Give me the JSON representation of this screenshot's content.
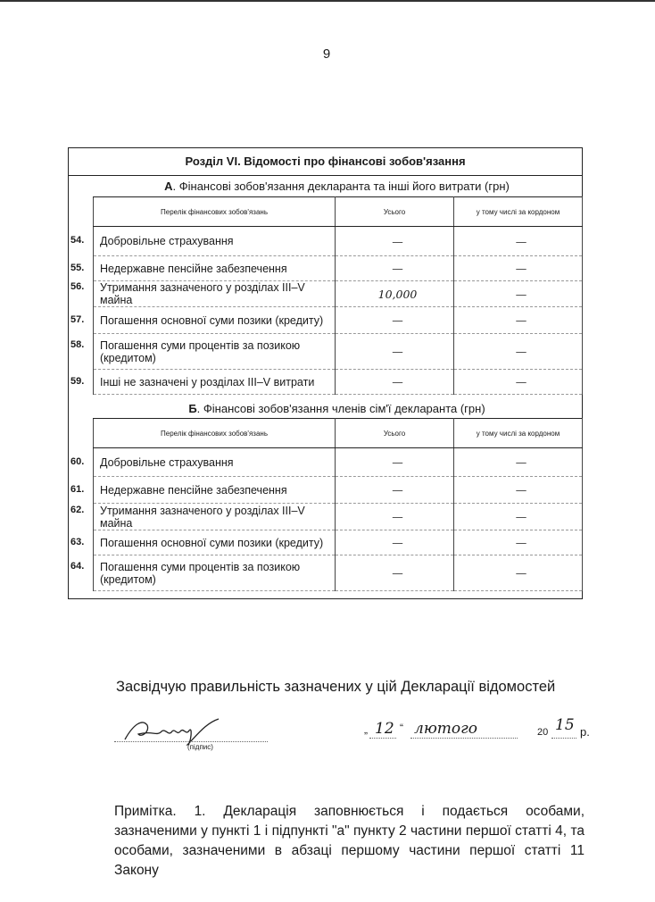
{
  "page_number": "9",
  "section_title": "Розділ VI. Відомості про фінансові зобов'язання",
  "part_a": {
    "letter": "А",
    "heading": ". Фінансові зобов'язання декларанта та інші його витрати (грн)",
    "columns": [
      "Перелік фінансових зобов'язань",
      "Усього",
      "у тому числі за кордоном"
    ],
    "rows": [
      {
        "num": "54.",
        "label": "Добровільне страхування",
        "total": "—",
        "abroad": "—"
      },
      {
        "num": "55.",
        "label": "Недержавне пенсійне забезпечення",
        "total": "—",
        "abroad": "—"
      },
      {
        "num": "56.",
        "label": "Утримання зазначеного у розділах III–V майна",
        "total": "10,000",
        "abroad": "—"
      },
      {
        "num": "57.",
        "label": "Погашення основної суми позики (кредиту)",
        "total": "—",
        "abroad": "—"
      },
      {
        "num": "58.",
        "label": "Погашення суми процентів за позикою (кредитом)",
        "total": "—",
        "abroad": "—"
      },
      {
        "num": "59.",
        "label": "Інші не зазначені у розділах III–V витрати",
        "total": "—",
        "abroad": "—"
      }
    ]
  },
  "part_b": {
    "letter": "Б",
    "heading": ". Фінансові зобов'язання членів сім'ї декларанта (грн)",
    "columns": [
      "Перелік фінансових зобов'язань",
      "Усього",
      "у тому числі за кордоном"
    ],
    "rows": [
      {
        "num": "60.",
        "label": "Добровільне страхування",
        "total": "—",
        "abroad": "—"
      },
      {
        "num": "61.",
        "label": "Недержавне пенсійне забезпечення",
        "total": "—",
        "abroad": "—"
      },
      {
        "num": "62.",
        "label": "Утримання зазначеного у розділах III–V майна",
        "total": "—",
        "abroad": "—"
      },
      {
        "num": "63.",
        "label": "Погашення основної суми позики (кредиту)",
        "total": "—",
        "abroad": "—"
      },
      {
        "num": "64.",
        "label": "Погашення суми процентів за позикою (кредитом)",
        "total": "—",
        "abroad": "—"
      }
    ]
  },
  "certification": {
    "text": "Засвідчую правильність зазначених у цій Декларації відомостей",
    "signature_label": "(підпис)",
    "signature": "Жмиуf",
    "day": "12",
    "month": "лютого",
    "year_prefix": "20",
    "year_suffix": "15",
    "year_unit": "р."
  },
  "note": "Примітка. 1. Декларація заповнюється і подається особами, зазначеними у пункті 1 і підпункті \"а\" пункту 2 частини першої статті 4, та особами, зазначеними в абзаці першому частини першої статті 11 Закону"
}
